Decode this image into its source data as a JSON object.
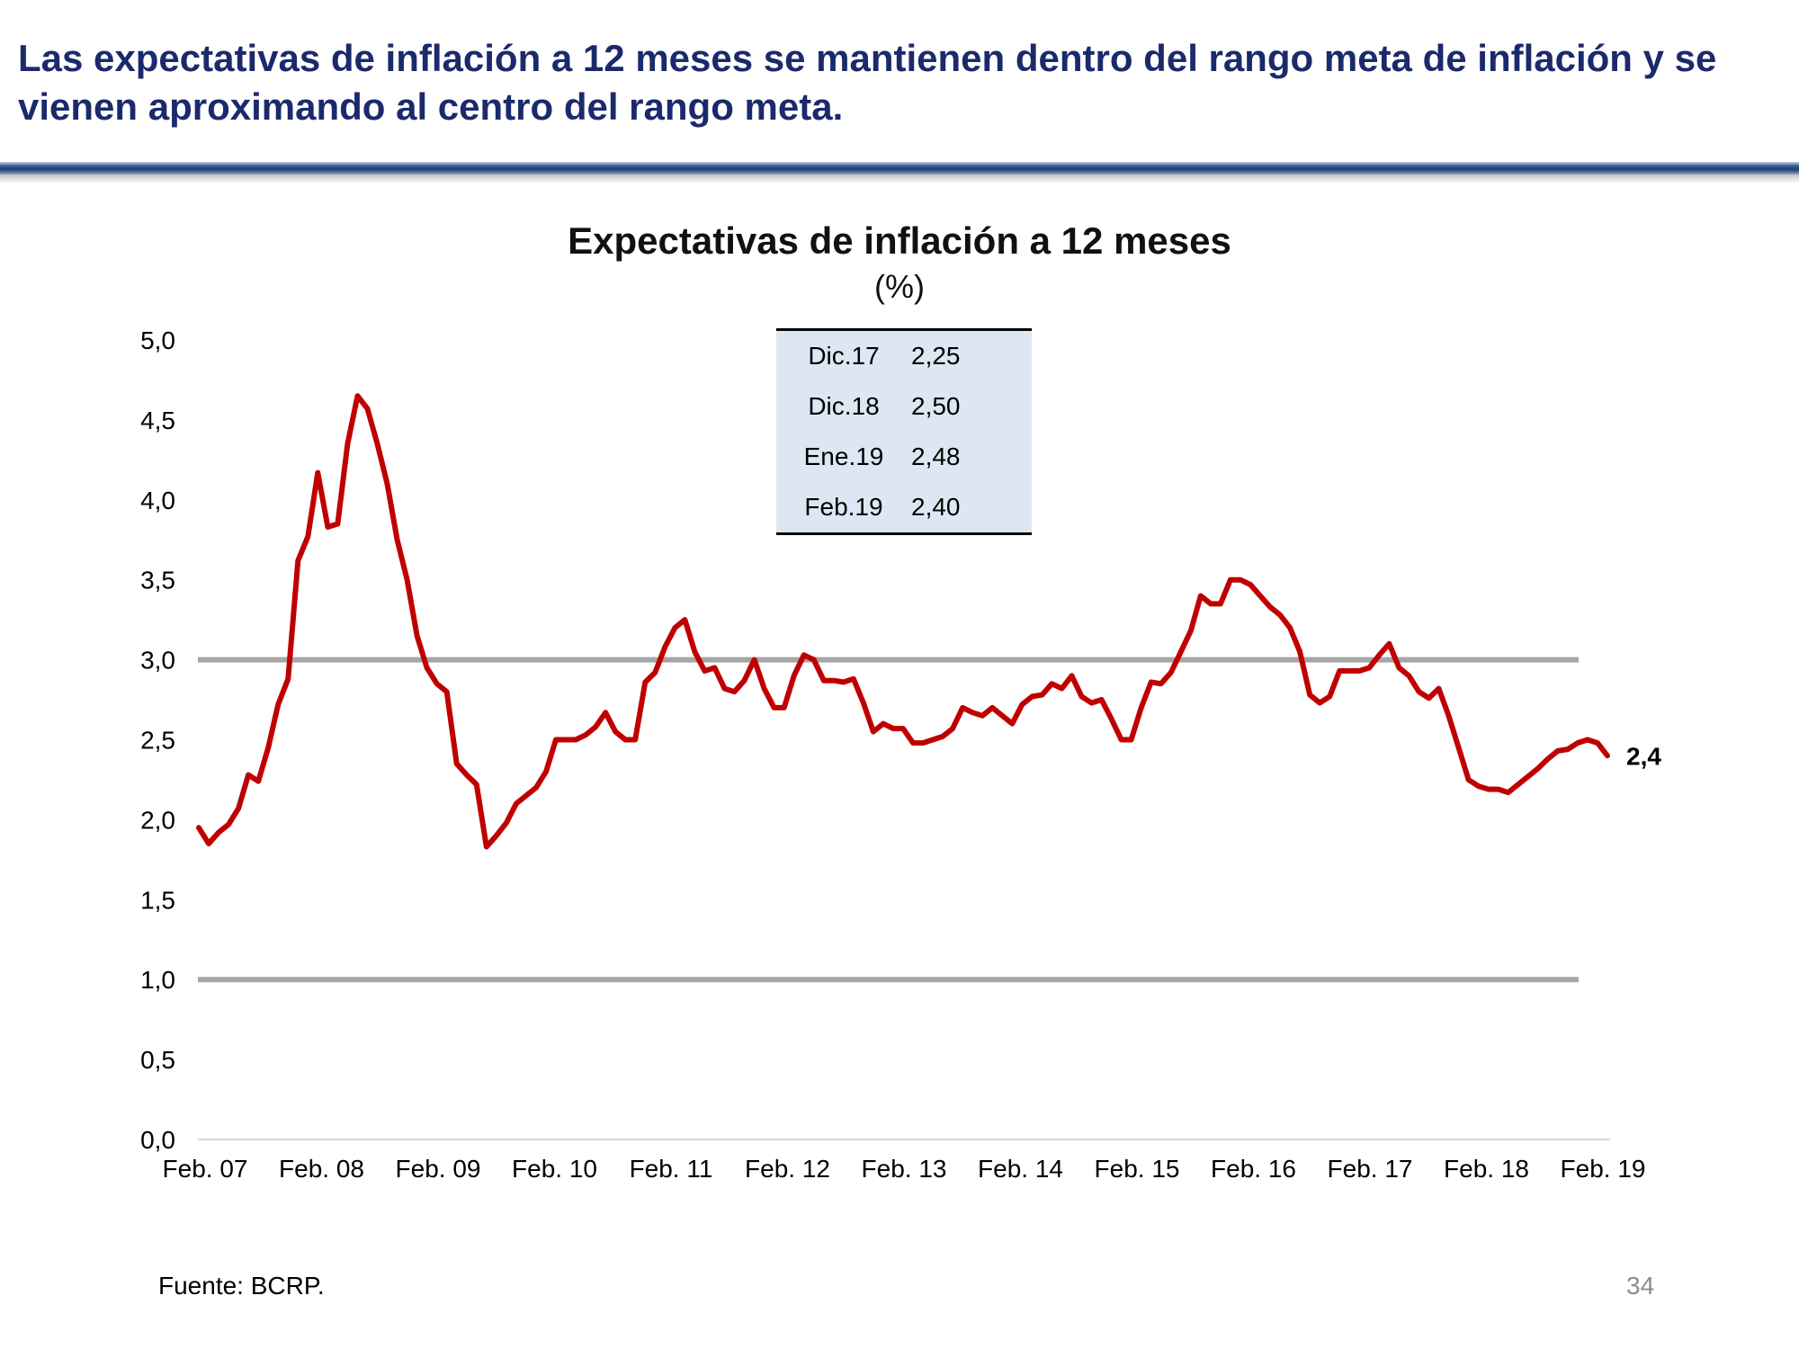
{
  "slide": {
    "headline": "Las expectativas de inflación a 12 meses se mantienen dentro del rango meta de inflación y se vienen aproximando al centro del rango meta.",
    "source": "Fuente: BCRP.",
    "page_number": "34"
  },
  "table": {
    "rows": [
      {
        "label": "Dic.17",
        "value": "2,25"
      },
      {
        "label": "Dic.18",
        "value": "2,50"
      },
      {
        "label": "Ene.19",
        "value": "2,48"
      },
      {
        "label": "Feb.19",
        "value": "2,40"
      }
    ]
  },
  "colors": {
    "series": "#c00000",
    "target_band": "#a6a6a6",
    "table_bg": "#dce7f3",
    "headline": "#1a2a6c"
  },
  "chart_data": {
    "type": "line",
    "title": "Expectativas de inflación a 12 meses",
    "subtitle": "(%)",
    "xlabel": "",
    "ylabel": "",
    "ylim": [
      0,
      5
    ],
    "yticks": [
      "0,0",
      "0,5",
      "1,0",
      "1,5",
      "2,0",
      "2,5",
      "3,0",
      "3,5",
      "4,0",
      "4,5",
      "5,0"
    ],
    "x_start": "Feb. 07",
    "x_end": "Feb. 19",
    "xticks": [
      "Feb. 07",
      "Feb. 08",
      "Feb. 09",
      "Feb. 10",
      "Feb. 11",
      "Feb. 12",
      "Feb. 13",
      "Feb. 14",
      "Feb. 15",
      "Feb. 16",
      "Feb. 17",
      "Feb. 18",
      "Feb. 19"
    ],
    "reference_lines": [
      {
        "name": "Límite superior del rango meta",
        "value": 3.0
      },
      {
        "name": "Límite inferior del rango meta",
        "value": 1.0
      }
    ],
    "end_label": "2,4",
    "series": [
      {
        "name": "Expectativas de inflación a 12 meses",
        "values": [
          1.95,
          1.85,
          1.92,
          1.97,
          2.07,
          2.28,
          2.24,
          2.45,
          2.72,
          2.88,
          3.62,
          3.77,
          4.17,
          3.83,
          3.85,
          4.35,
          4.65,
          4.57,
          4.35,
          4.1,
          3.75,
          3.5,
          3.15,
          2.95,
          2.85,
          2.8,
          2.35,
          2.28,
          2.22,
          1.83,
          1.9,
          1.98,
          2.1,
          2.15,
          2.2,
          2.3,
          2.5,
          2.5,
          2.5,
          2.53,
          2.58,
          2.67,
          2.55,
          2.5,
          2.5,
          2.86,
          2.92,
          3.08,
          3.2,
          3.25,
          3.05,
          2.93,
          2.95,
          2.82,
          2.8,
          2.87,
          3.0,
          2.82,
          2.7,
          2.7,
          2.9,
          3.03,
          3.0,
          2.87,
          2.87,
          2.86,
          2.88,
          2.73,
          2.55,
          2.6,
          2.57,
          2.57,
          2.48,
          2.48,
          2.5,
          2.52,
          2.57,
          2.7,
          2.67,
          2.65,
          2.7,
          2.65,
          2.6,
          2.72,
          2.77,
          2.78,
          2.85,
          2.82,
          2.9,
          2.77,
          2.73,
          2.75,
          2.63,
          2.5,
          2.5,
          2.7,
          2.86,
          2.85,
          2.92,
          3.05,
          3.18,
          3.4,
          3.35,
          3.35,
          3.5,
          3.5,
          3.47,
          3.4,
          3.33,
          3.28,
          3.2,
          3.05,
          2.78,
          2.73,
          2.77,
          2.93,
          2.93,
          2.93,
          2.95,
          3.03,
          3.1,
          2.95,
          2.9,
          2.8,
          2.76,
          2.82,
          2.65,
          2.45,
          2.25,
          2.21,
          2.19,
          2.19,
          2.17,
          2.22,
          2.27,
          2.32,
          2.38,
          2.43,
          2.44,
          2.48,
          2.5,
          2.48,
          2.4
        ]
      }
    ]
  }
}
